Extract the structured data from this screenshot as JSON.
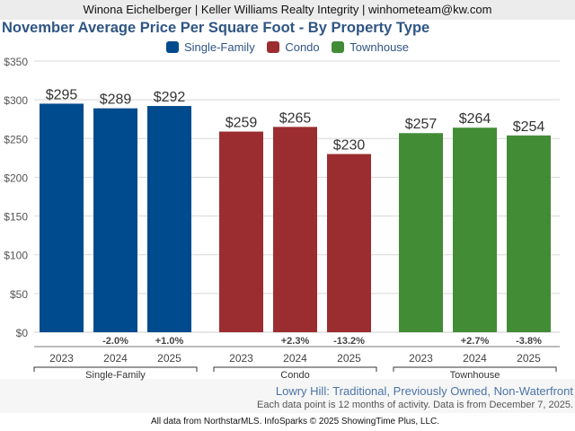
{
  "header": {
    "agent_line": "Winona Eichelberger | Keller Williams Realty Integrity | winhometeam@kw.com"
  },
  "chart_data": {
    "type": "bar",
    "title": "November Average Price Per Square Foot - By Property Type",
    "xlabel": "",
    "ylabel": "",
    "ylim": [
      0,
      350
    ],
    "yticks": [
      0,
      50,
      100,
      150,
      200,
      250,
      300,
      350
    ],
    "ytick_labels": [
      "$0",
      "$50",
      "$100",
      "$150",
      "$200",
      "$250",
      "$300",
      "$350"
    ],
    "grid": true,
    "legend_position": "top-center",
    "groups": [
      {
        "name": "Single-Family",
        "color": "#004b8d",
        "categories": [
          "2023",
          "2024",
          "2025"
        ],
        "values": [
          295,
          289,
          292
        ],
        "value_labels": [
          "$295",
          "$289",
          "$292"
        ],
        "change_labels": [
          "",
          "-2.0%",
          "+1.0%"
        ]
      },
      {
        "name": "Condo",
        "color": "#9b2d30",
        "categories": [
          "2023",
          "2024",
          "2025"
        ],
        "values": [
          259,
          265,
          230
        ],
        "value_labels": [
          "$259",
          "$265",
          "$230"
        ],
        "change_labels": [
          "",
          "+2.3%",
          "-13.2%"
        ]
      },
      {
        "name": "Townhouse",
        "color": "#428c36",
        "categories": [
          "2023",
          "2024",
          "2025"
        ],
        "values": [
          257,
          264,
          254
        ],
        "value_labels": [
          "$257",
          "$264",
          "$254"
        ],
        "change_labels": [
          "",
          "+2.7%",
          "-3.8%"
        ]
      }
    ],
    "legend": [
      {
        "label": "Single-Family",
        "color": "#004b8d"
      },
      {
        "label": "Condo",
        "color": "#9b2d30"
      },
      {
        "label": "Townhouse",
        "color": "#428c36"
      }
    ]
  },
  "subtitle": {
    "area": "Lowry Hill: Traditional, Previously Owned, Non-Waterfront",
    "note": "Each data point is 12 months of activity. Data is from December 7, 2025."
  },
  "footer": {
    "text": "All data from NorthstarMLS. InfoSparks © 2025 ShowingTime Plus, LLC."
  }
}
